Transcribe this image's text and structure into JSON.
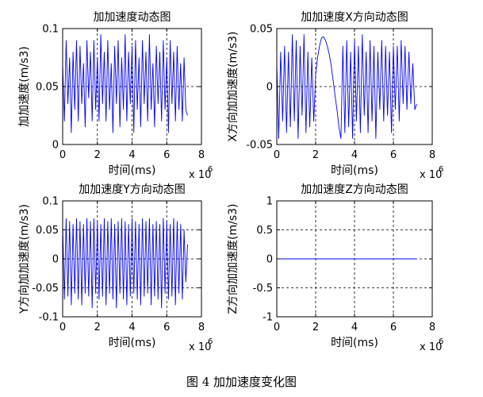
{
  "caption": "图 4  加加速度变化图",
  "chart_data": [
    {
      "type": "line",
      "title": "加加速度动态图",
      "xlabel": "时间(ms)",
      "ylabel": "加加速度(m/s3)",
      "x_exponent_base": "x 10",
      "x_exponent_power": "6",
      "xlim": [
        0,
        8
      ],
      "ylim": [
        0,
        0.1
      ],
      "xticks": [
        0,
        2,
        4,
        6,
        8
      ],
      "xtick_labels": [
        "0",
        "2",
        "4",
        "6",
        "8"
      ],
      "yticks": [
        0,
        0.05,
        0.1
      ],
      "ytick_labels": [
        "0",
        "0.05",
        "0.1"
      ],
      "grid": true,
      "line_color": "#0000ff",
      "x": [
        0.0,
        0.1,
        0.2,
        0.3,
        0.4,
        0.5,
        0.6,
        0.7,
        0.8,
        0.9,
        1.0,
        1.1,
        1.2,
        1.3,
        1.4,
        1.5,
        1.6,
        1.7,
        1.8,
        1.9,
        2.0,
        2.1,
        2.2,
        2.3,
        2.4,
        2.5,
        2.6,
        2.7,
        2.8,
        2.9,
        3.0,
        3.1,
        3.2,
        3.3,
        3.4,
        3.5,
        3.6,
        3.7,
        3.8,
        3.9,
        4.0,
        4.1,
        4.2,
        4.3,
        4.4,
        4.5,
        4.6,
        4.7,
        4.8,
        4.9,
        5.0,
        5.1,
        5.2,
        5.3,
        5.4,
        5.5,
        5.6,
        5.7,
        5.8,
        5.9,
        6.0,
        6.1,
        6.2,
        6.3,
        6.4,
        6.5,
        6.6,
        6.7,
        6.8,
        6.9,
        7.0,
        7.1,
        7.2
      ],
      "values": [
        0.07,
        0.02,
        0.09,
        0.035,
        0.075,
        0.01,
        0.08,
        0.03,
        0.09,
        0.02,
        0.085,
        0.035,
        0.07,
        0.015,
        0.09,
        0.04,
        0.08,
        0.02,
        0.09,
        0.03,
        0.075,
        0.02,
        0.095,
        0.035,
        0.08,
        0.02,
        0.09,
        0.03,
        0.07,
        0.01,
        0.085,
        0.035,
        0.09,
        0.015,
        0.075,
        0.03,
        0.095,
        0.02,
        0.08,
        0.035,
        0.085,
        0.01,
        0.09,
        0.03,
        0.075,
        0.015,
        0.09,
        0.035,
        0.08,
        0.02,
        0.095,
        0.03,
        0.07,
        0.015,
        0.085,
        0.035,
        0.08,
        0.02,
        0.09,
        0.03,
        0.075,
        0.01,
        0.09,
        0.035,
        0.08,
        0.02,
        0.085,
        0.03,
        0.07,
        0.02,
        0.075,
        0.03,
        0.025
      ]
    },
    {
      "type": "line",
      "title": "加加速度X方向动态图",
      "xlabel": "时间(ms)",
      "ylabel": "X方向加加速度(m/s3)",
      "x_exponent_base": "x 10",
      "x_exponent_power": "6",
      "xlim": [
        0,
        8
      ],
      "ylim": [
        -0.05,
        0.05
      ],
      "xticks": [
        0,
        2,
        4,
        6,
        8
      ],
      "xtick_labels": [
        "0",
        "2",
        "4",
        "6",
        "8"
      ],
      "yticks": [
        -0.05,
        0,
        0.05
      ],
      "ytick_labels": [
        "-0.05",
        "0",
        "0.05"
      ],
      "grid": true,
      "line_color": "#0000ff",
      "x": [
        0.0,
        0.1,
        0.2,
        0.3,
        0.4,
        0.5,
        0.6,
        0.7,
        0.8,
        0.9,
        1.0,
        1.1,
        1.2,
        1.3,
        1.4,
        1.5,
        1.6,
        1.7,
        1.8,
        1.9,
        2.0,
        2.1,
        2.2,
        2.3,
        2.4,
        2.5,
        2.6,
        2.7,
        2.8,
        2.9,
        3.0,
        3.1,
        3.2,
        3.3,
        3.4,
        3.5,
        3.6,
        3.7,
        3.8,
        3.9,
        4.0,
        4.1,
        4.2,
        4.3,
        4.4,
        4.5,
        4.6,
        4.7,
        4.8,
        4.9,
        5.0,
        5.1,
        5.2,
        5.3,
        5.4,
        5.5,
        5.6,
        5.7,
        5.8,
        5.9,
        6.0,
        6.1,
        6.2,
        6.3,
        6.4,
        6.5,
        6.6,
        6.7,
        6.8,
        6.9,
        7.0,
        7.1,
        7.2
      ],
      "values": [
        0.02,
        -0.045,
        0.03,
        -0.03,
        0.035,
        -0.04,
        0.03,
        -0.035,
        0.045,
        -0.03,
        0.04,
        -0.045,
        0.035,
        -0.025,
        0.045,
        -0.04,
        0.03,
        -0.035,
        0.025,
        -0.03,
        0.01,
        0.025,
        0.035,
        0.042,
        0.043,
        0.04,
        0.035,
        0.028,
        0.018,
        0.005,
        -0.008,
        -0.02,
        -0.035,
        -0.045,
        0.035,
        -0.04,
        0.04,
        -0.035,
        0.03,
        -0.045,
        0.04,
        -0.03,
        0.035,
        -0.04,
        0.045,
        -0.025,
        0.03,
        -0.04,
        0.04,
        -0.03,
        0.035,
        -0.045,
        0.03,
        -0.02,
        0.04,
        -0.03,
        0.035,
        -0.025,
        0.03,
        -0.04,
        0.035,
        -0.02,
        0.035,
        -0.03,
        0.04,
        -0.015,
        0.035,
        -0.02,
        0.03,
        -0.015,
        0.02,
        -0.02,
        -0.015
      ]
    },
    {
      "type": "line",
      "title": "加加速度Y方向动态图",
      "xlabel": "时间(ms)",
      "ylabel": "Y方向加加速度(m/s3)",
      "x_exponent_base": "x 10",
      "x_exponent_power": "6",
      "xlim": [
        0,
        8
      ],
      "ylim": [
        -0.1,
        0.1
      ],
      "xticks": [
        0,
        2,
        4,
        6,
        8
      ],
      "xtick_labels": [
        "0",
        "2",
        "4",
        "6",
        "8"
      ],
      "yticks": [
        -0.1,
        -0.05,
        0,
        0.05,
        0.1
      ],
      "ytick_labels": [
        "-0.1",
        "-0.05",
        "0",
        "0.05",
        "0.1"
      ],
      "grid": true,
      "line_color": "#0000ff",
      "x": [
        0.0,
        0.1,
        0.2,
        0.3,
        0.4,
        0.5,
        0.6,
        0.7,
        0.8,
        0.9,
        1.0,
        1.1,
        1.2,
        1.3,
        1.4,
        1.5,
        1.6,
        1.7,
        1.8,
        1.9,
        2.0,
        2.1,
        2.2,
        2.3,
        2.4,
        2.5,
        2.6,
        2.7,
        2.8,
        2.9,
        3.0,
        3.1,
        3.2,
        3.3,
        3.4,
        3.5,
        3.6,
        3.7,
        3.8,
        3.9,
        4.0,
        4.1,
        4.2,
        4.3,
        4.4,
        4.5,
        4.6,
        4.7,
        4.8,
        4.9,
        5.0,
        5.1,
        5.2,
        5.3,
        5.4,
        5.5,
        5.6,
        5.7,
        5.8,
        5.9,
        6.0,
        6.1,
        6.2,
        6.3,
        6.4,
        6.5,
        6.6,
        6.7,
        6.8,
        6.9,
        7.0,
        7.1,
        7.2
      ],
      "values": [
        0.06,
        -0.07,
        0.07,
        -0.065,
        0.065,
        -0.08,
        0.06,
        -0.06,
        0.07,
        -0.07,
        0.065,
        -0.08,
        0.06,
        -0.06,
        0.07,
        -0.065,
        0.065,
        -0.085,
        0.07,
        -0.06,
        0.065,
        -0.07,
        0.06,
        -0.065,
        0.07,
        -0.08,
        0.065,
        -0.06,
        0.07,
        -0.07,
        0.06,
        -0.085,
        0.065,
        -0.06,
        0.07,
        -0.07,
        0.065,
        -0.08,
        0.06,
        -0.065,
        0.07,
        -0.06,
        0.065,
        -0.07,
        0.06,
        -0.08,
        0.07,
        -0.065,
        0.065,
        -0.06,
        0.07,
        -0.08,
        0.06,
        -0.065,
        0.065,
        -0.07,
        0.06,
        -0.085,
        0.07,
        -0.06,
        0.065,
        -0.07,
        0.06,
        -0.065,
        0.07,
        -0.08,
        0.065,
        -0.06,
        0.06,
        -0.07,
        0.05,
        -0.04,
        0.025
      ]
    },
    {
      "type": "line",
      "title": "加加速度Z方向动态图",
      "xlabel": "时间(ms)",
      "ylabel": "Z方向加加速度(m/s3)",
      "x_exponent_base": "x 10",
      "x_exponent_power": "6",
      "xlim": [
        0,
        8
      ],
      "ylim": [
        -1,
        1
      ],
      "xticks": [
        0,
        2,
        4,
        6,
        8
      ],
      "xtick_labels": [
        "0",
        "2",
        "4",
        "6",
        "8"
      ],
      "yticks": [
        -1,
        -0.5,
        0,
        0.5,
        1
      ],
      "ytick_labels": [
        "-1",
        "-0.5",
        "0",
        "0.5",
        "1"
      ],
      "grid": true,
      "line_color": "#0000ff",
      "x": [
        0.0,
        7.2
      ],
      "values": [
        0,
        0
      ]
    }
  ]
}
